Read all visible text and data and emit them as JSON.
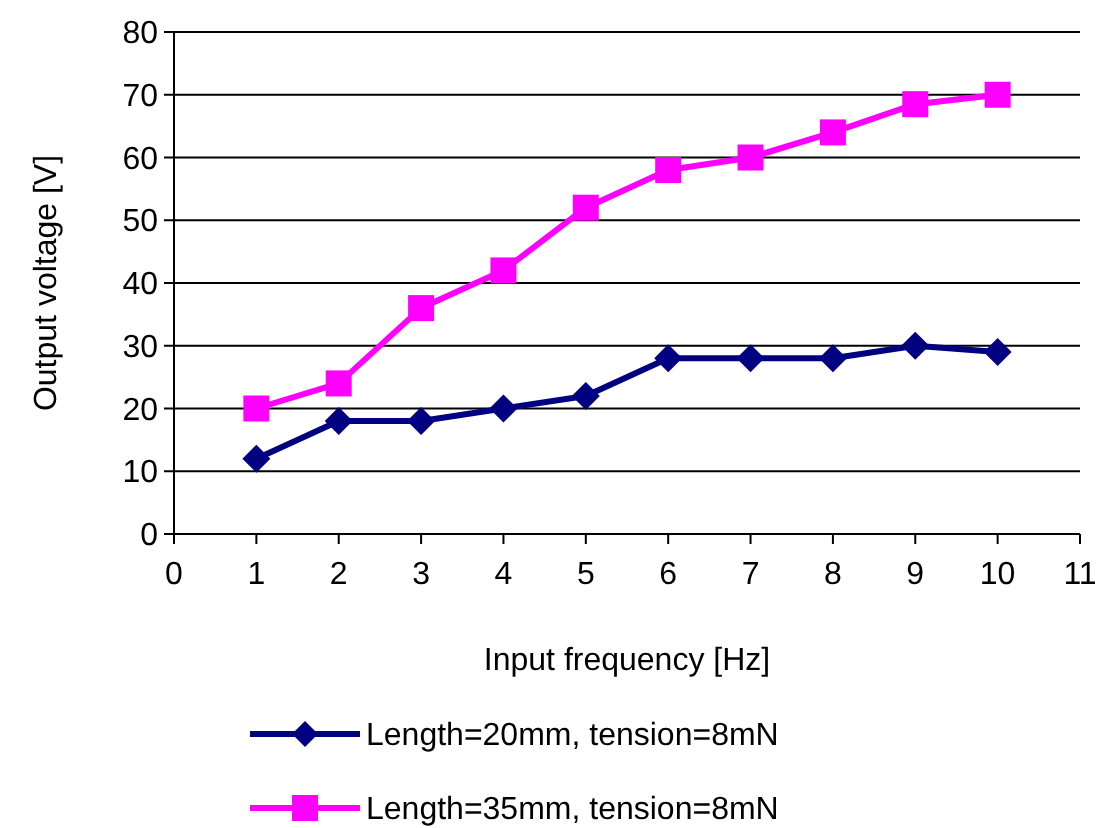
{
  "chart_data": {
    "type": "line",
    "xlabel": "Input frequency [Hz]",
    "ylabel": "Output voltage [V]",
    "x": [
      1,
      2,
      3,
      4,
      5,
      6,
      7,
      8,
      9,
      10
    ],
    "series": [
      {
        "name": "Length=20mm, tension=8mN",
        "color": "#000080",
        "marker": "diamond",
        "values": [
          12,
          18,
          18,
          20,
          22,
          28,
          28,
          28,
          30,
          29
        ]
      },
      {
        "name": "Length=35mm, tension=8mN",
        "color": "#ff00ff",
        "marker": "square",
        "values": [
          20,
          24,
          36,
          42,
          52,
          58,
          60,
          64,
          68.5,
          70
        ]
      }
    ],
    "xlim": [
      0,
      11
    ],
    "xticks": [
      0,
      1,
      2,
      3,
      4,
      5,
      6,
      7,
      8,
      9,
      10,
      11
    ],
    "ylim": [
      0,
      80
    ],
    "yticks": [
      0,
      10,
      20,
      30,
      40,
      50,
      60,
      70,
      80
    ],
    "grid": "y",
    "legend": "bottom",
    "line_style": "solid"
  }
}
